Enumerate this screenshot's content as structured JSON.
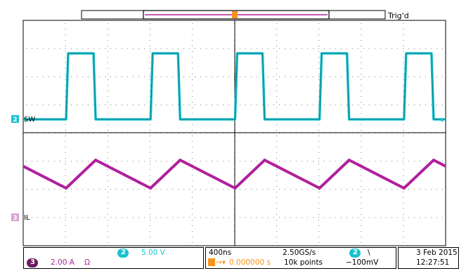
{
  "trigger": {
    "status": "Trig'd",
    "marker": "T"
  },
  "channels": [
    {
      "number": "2",
      "label": "SW",
      "color": "#19c2d0",
      "scale": "5.00 V"
    },
    {
      "number": "3",
      "label": "IL",
      "color": "#b0209c",
      "scale": "2.00 A",
      "unit_symbol": "Ω"
    }
  ],
  "horizontal": {
    "time_per_div": "400ns",
    "sample_rate": "2.50GS/s",
    "record_length": "10k points",
    "trigger_delay": "0.000000 s"
  },
  "trigger_info": {
    "source": "2",
    "slope_symbol": "\\",
    "level": "−100mV"
  },
  "datetime": {
    "date": "3 Feb 2015",
    "time": "12:27:51"
  },
  "signals": {
    "sw_high_level": 1,
    "sw_low_level": 0,
    "sw_period_divisions": 2.0,
    "sw_duty_cycle": 0.35,
    "il_shape": "triangle",
    "grid_divisions": {
      "horizontal": 10,
      "vertical": 8
    }
  }
}
